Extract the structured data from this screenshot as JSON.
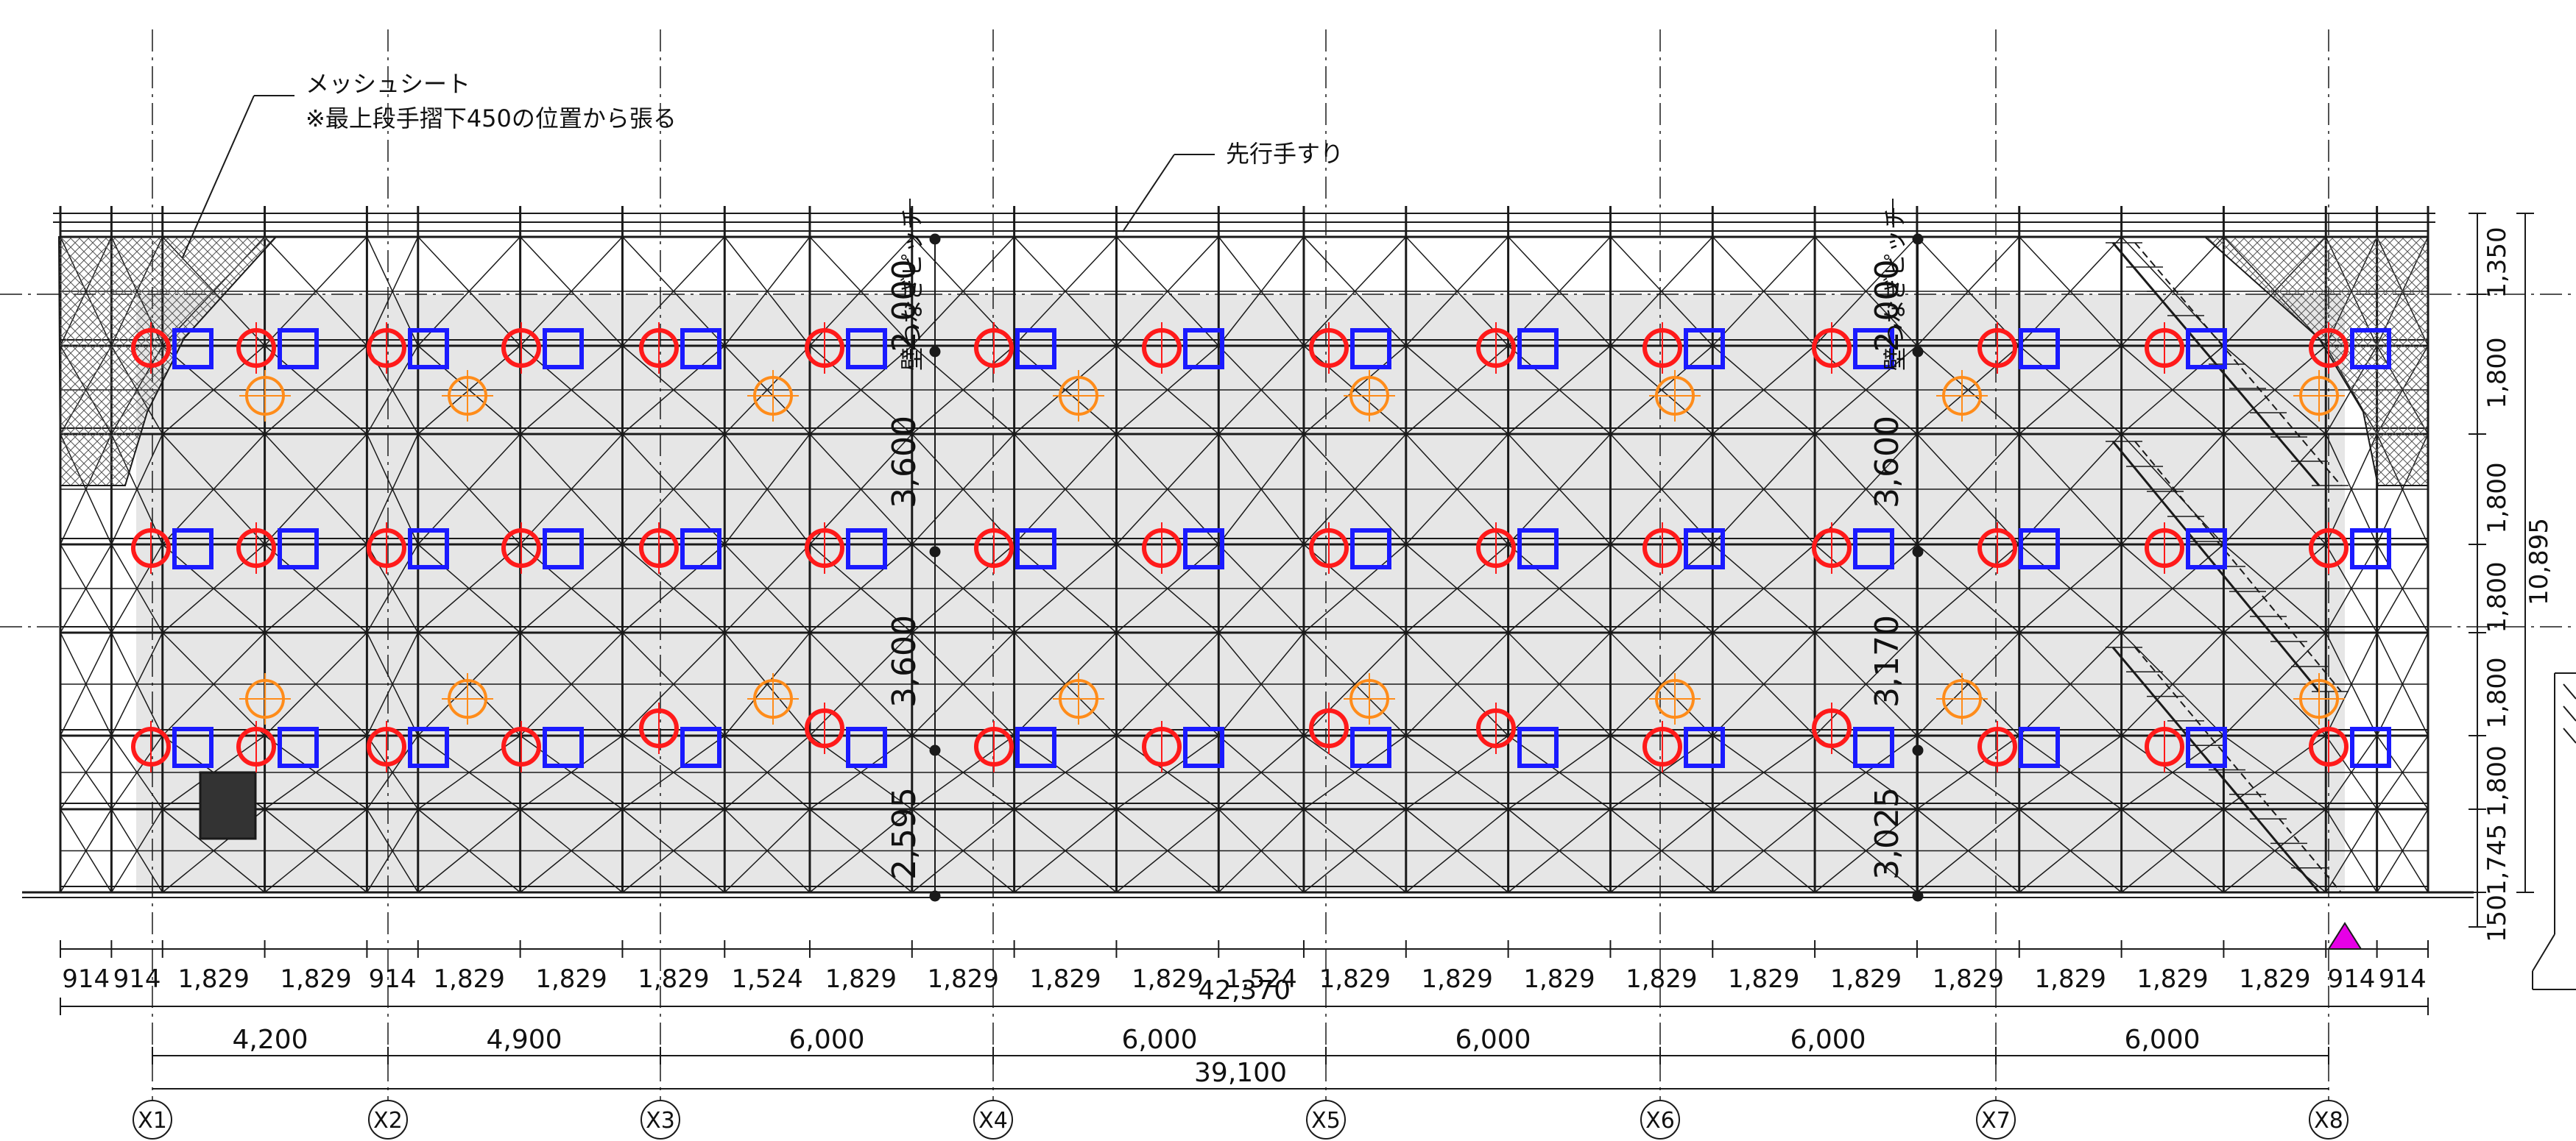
{
  "annotations": {
    "mesh_title": "メッシュシート",
    "mesh_note": "※最上段手摺下450の位置から張る",
    "handrail": "先行手すり",
    "wall_tie_pitch_left": "壁つなぎピッチ",
    "wall_tie_pitch_right": "壁つなぎピッチ"
  },
  "vertical_dims_left": [
    "2,000",
    "3,600",
    "3,600",
    "2,595"
  ],
  "vertical_dims_right": [
    "2,000",
    "3,600",
    "3,170",
    "3,025"
  ],
  "right_side_dims": [
    "1,350",
    "1,800",
    "1,800",
    "1,800",
    "1,800",
    "1,800",
    "1,745",
    "150"
  ],
  "right_total": "10,895",
  "bay_dims": [
    "914",
    "914",
    "1,829",
    "1,829",
    "914",
    "1,829",
    "1,829",
    "1,829",
    "1,524",
    "1,829",
    "1,829",
    "1,829",
    "1,829",
    "1,524",
    "1,829",
    "1,829",
    "1,829",
    "1,829",
    "1,829",
    "1,829",
    "1,829",
    "1,829",
    "1,829",
    "1,829",
    "914",
    "914"
  ],
  "overall_total": "42,370",
  "grid_spans": [
    "4,200",
    "4,900",
    "6,000",
    "6,000",
    "6,000",
    "6,000",
    "6,000"
  ],
  "grid_total": "39,100",
  "grid_axes": [
    "X1",
    "X2",
    "X3",
    "X4",
    "X5",
    "X6",
    "X7",
    "X8"
  ],
  "colors": {
    "line": "#1a1a1a",
    "fill": "#e6e6e6",
    "red_marker": "#ff1a1a",
    "blue_marker": "#1a1aff",
    "orange_marker": "#ff8c1a",
    "triangle": "#e600e6"
  }
}
